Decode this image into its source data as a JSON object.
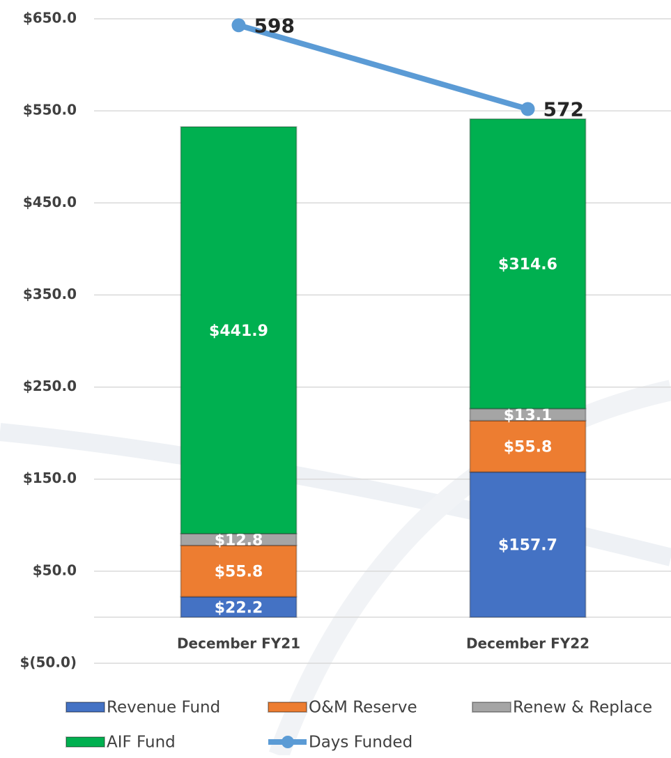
{
  "chart_data": {
    "type": "bar",
    "stacked": true,
    "categories": [
      "December FY21",
      "December FY22"
    ],
    "series": [
      {
        "name": "Revenue Fund",
        "color": "#4472c4",
        "values": [
          22.2,
          157.7
        ],
        "value_labels": [
          "$22.2",
          "$157.7"
        ]
      },
      {
        "name": "O&M Reserve",
        "color": "#ed7d31",
        "values": [
          55.8,
          55.8
        ],
        "value_labels": [
          "$55.8",
          "$55.8"
        ]
      },
      {
        "name": "Renew & Replace",
        "color": "#a5a5a5",
        "values": [
          12.8,
          13.1
        ],
        "value_labels": [
          "$12.8",
          "$13.1"
        ]
      },
      {
        "name": "AIF Fund",
        "color": "#00b050",
        "values": [
          441.9,
          314.6
        ],
        "value_labels": [
          "$441.9",
          "$314.6"
        ]
      },
      {
        "name": "Days Funded",
        "type": "line",
        "axis": "y2",
        "color": "#5b9bd5",
        "values": [
          598,
          572
        ]
      }
    ],
    "ylim": [
      -50,
      650
    ],
    "yticks": [
      {
        "value": -50,
        "label": "$(50.0)"
      },
      {
        "value": 50,
        "label": "$50.0"
      },
      {
        "value": 150,
        "label": "$150.0"
      },
      {
        "value": 250,
        "label": "$250.0"
      },
      {
        "value": 350,
        "label": "$350.0"
      },
      {
        "value": 450,
        "label": "$450.0"
      },
      {
        "value": 550,
        "label": "$550.0"
      },
      {
        "value": 650,
        "label": "$650.0"
      }
    ],
    "y2lim": [
      400,
      600
    ],
    "grid": true,
    "legend": "bottom"
  }
}
